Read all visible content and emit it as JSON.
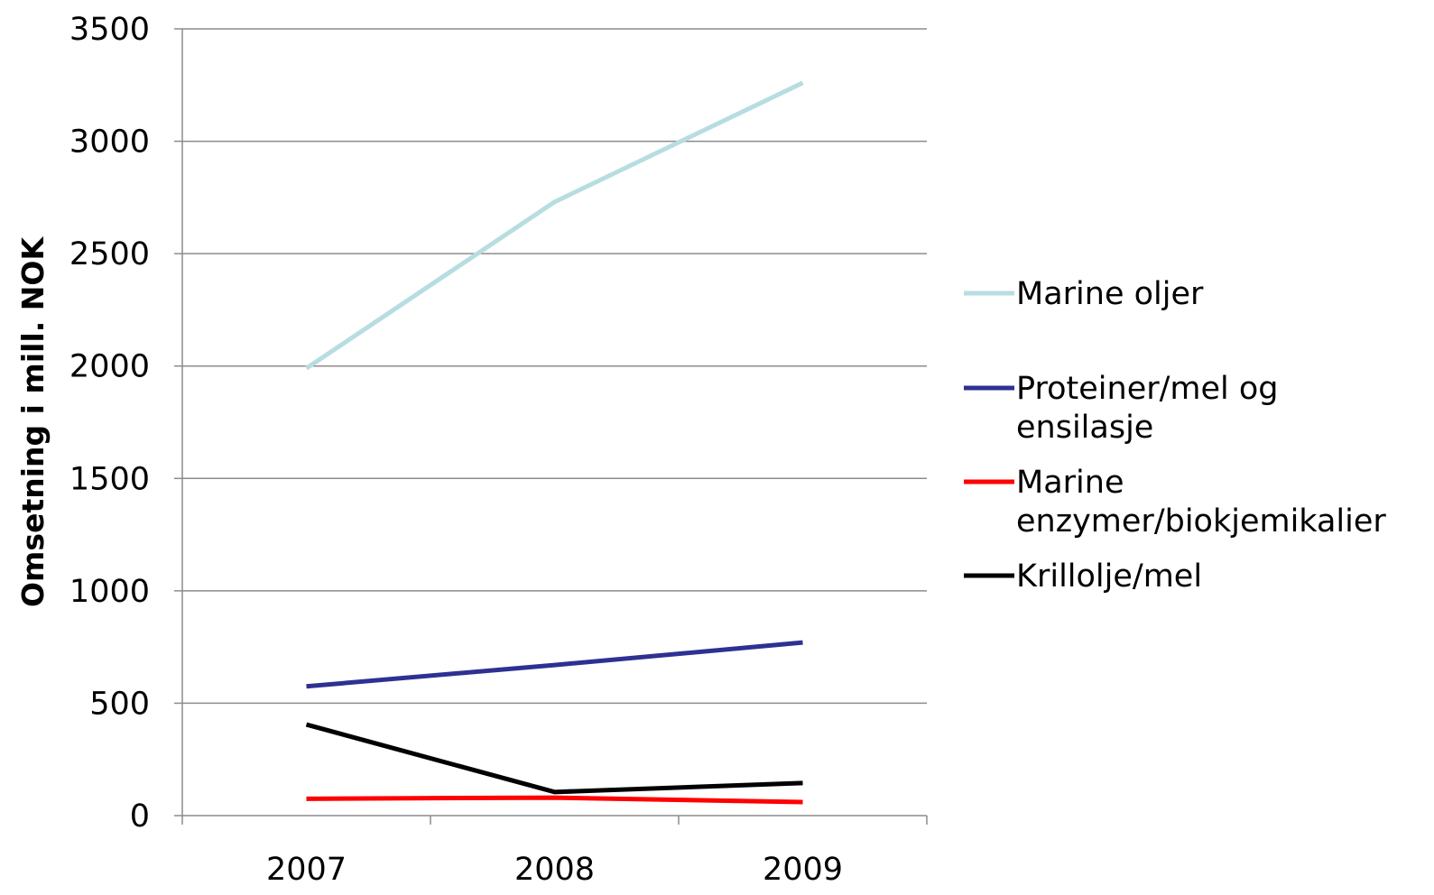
{
  "chart_data": {
    "type": "line",
    "categories": [
      "2007",
      "2008",
      "2009"
    ],
    "ylabel": "Omsetning i mill. NOK",
    "xlabel": "",
    "ylim": [
      0,
      3500
    ],
    "yticks": [
      "0",
      "500",
      "1000",
      "1500",
      "2000",
      "2500",
      "3000",
      "3500"
    ],
    "ytick_values": [
      0,
      500,
      1000,
      1500,
      2000,
      2500,
      3000,
      3500
    ],
    "grid": true,
    "legend_position": "right",
    "series": [
      {
        "name": "Marine oljer",
        "legend_lines": [
          "Marine oljer"
        ],
        "values": [
          1990,
          2730,
          3260
        ],
        "color": "#b7dde1"
      },
      {
        "name": "Proteiner/mel og ensilasje",
        "legend_lines": [
          "Proteiner/mel og",
          "ensilasje"
        ],
        "values": [
          575,
          670,
          770
        ],
        "color": "#2e3192"
      },
      {
        "name": "Marine enzymer/biokjemikalier",
        "legend_lines": [
          "Marine",
          "enzymer/biokjemikalier"
        ],
        "values": [
          75,
          80,
          60
        ],
        "color": "#ff0000"
      },
      {
        "name": "Krillolje/mel",
        "legend_lines": [
          "Krillolje/mel"
        ],
        "values": [
          405,
          105,
          145
        ],
        "color": "#000000"
      }
    ]
  }
}
